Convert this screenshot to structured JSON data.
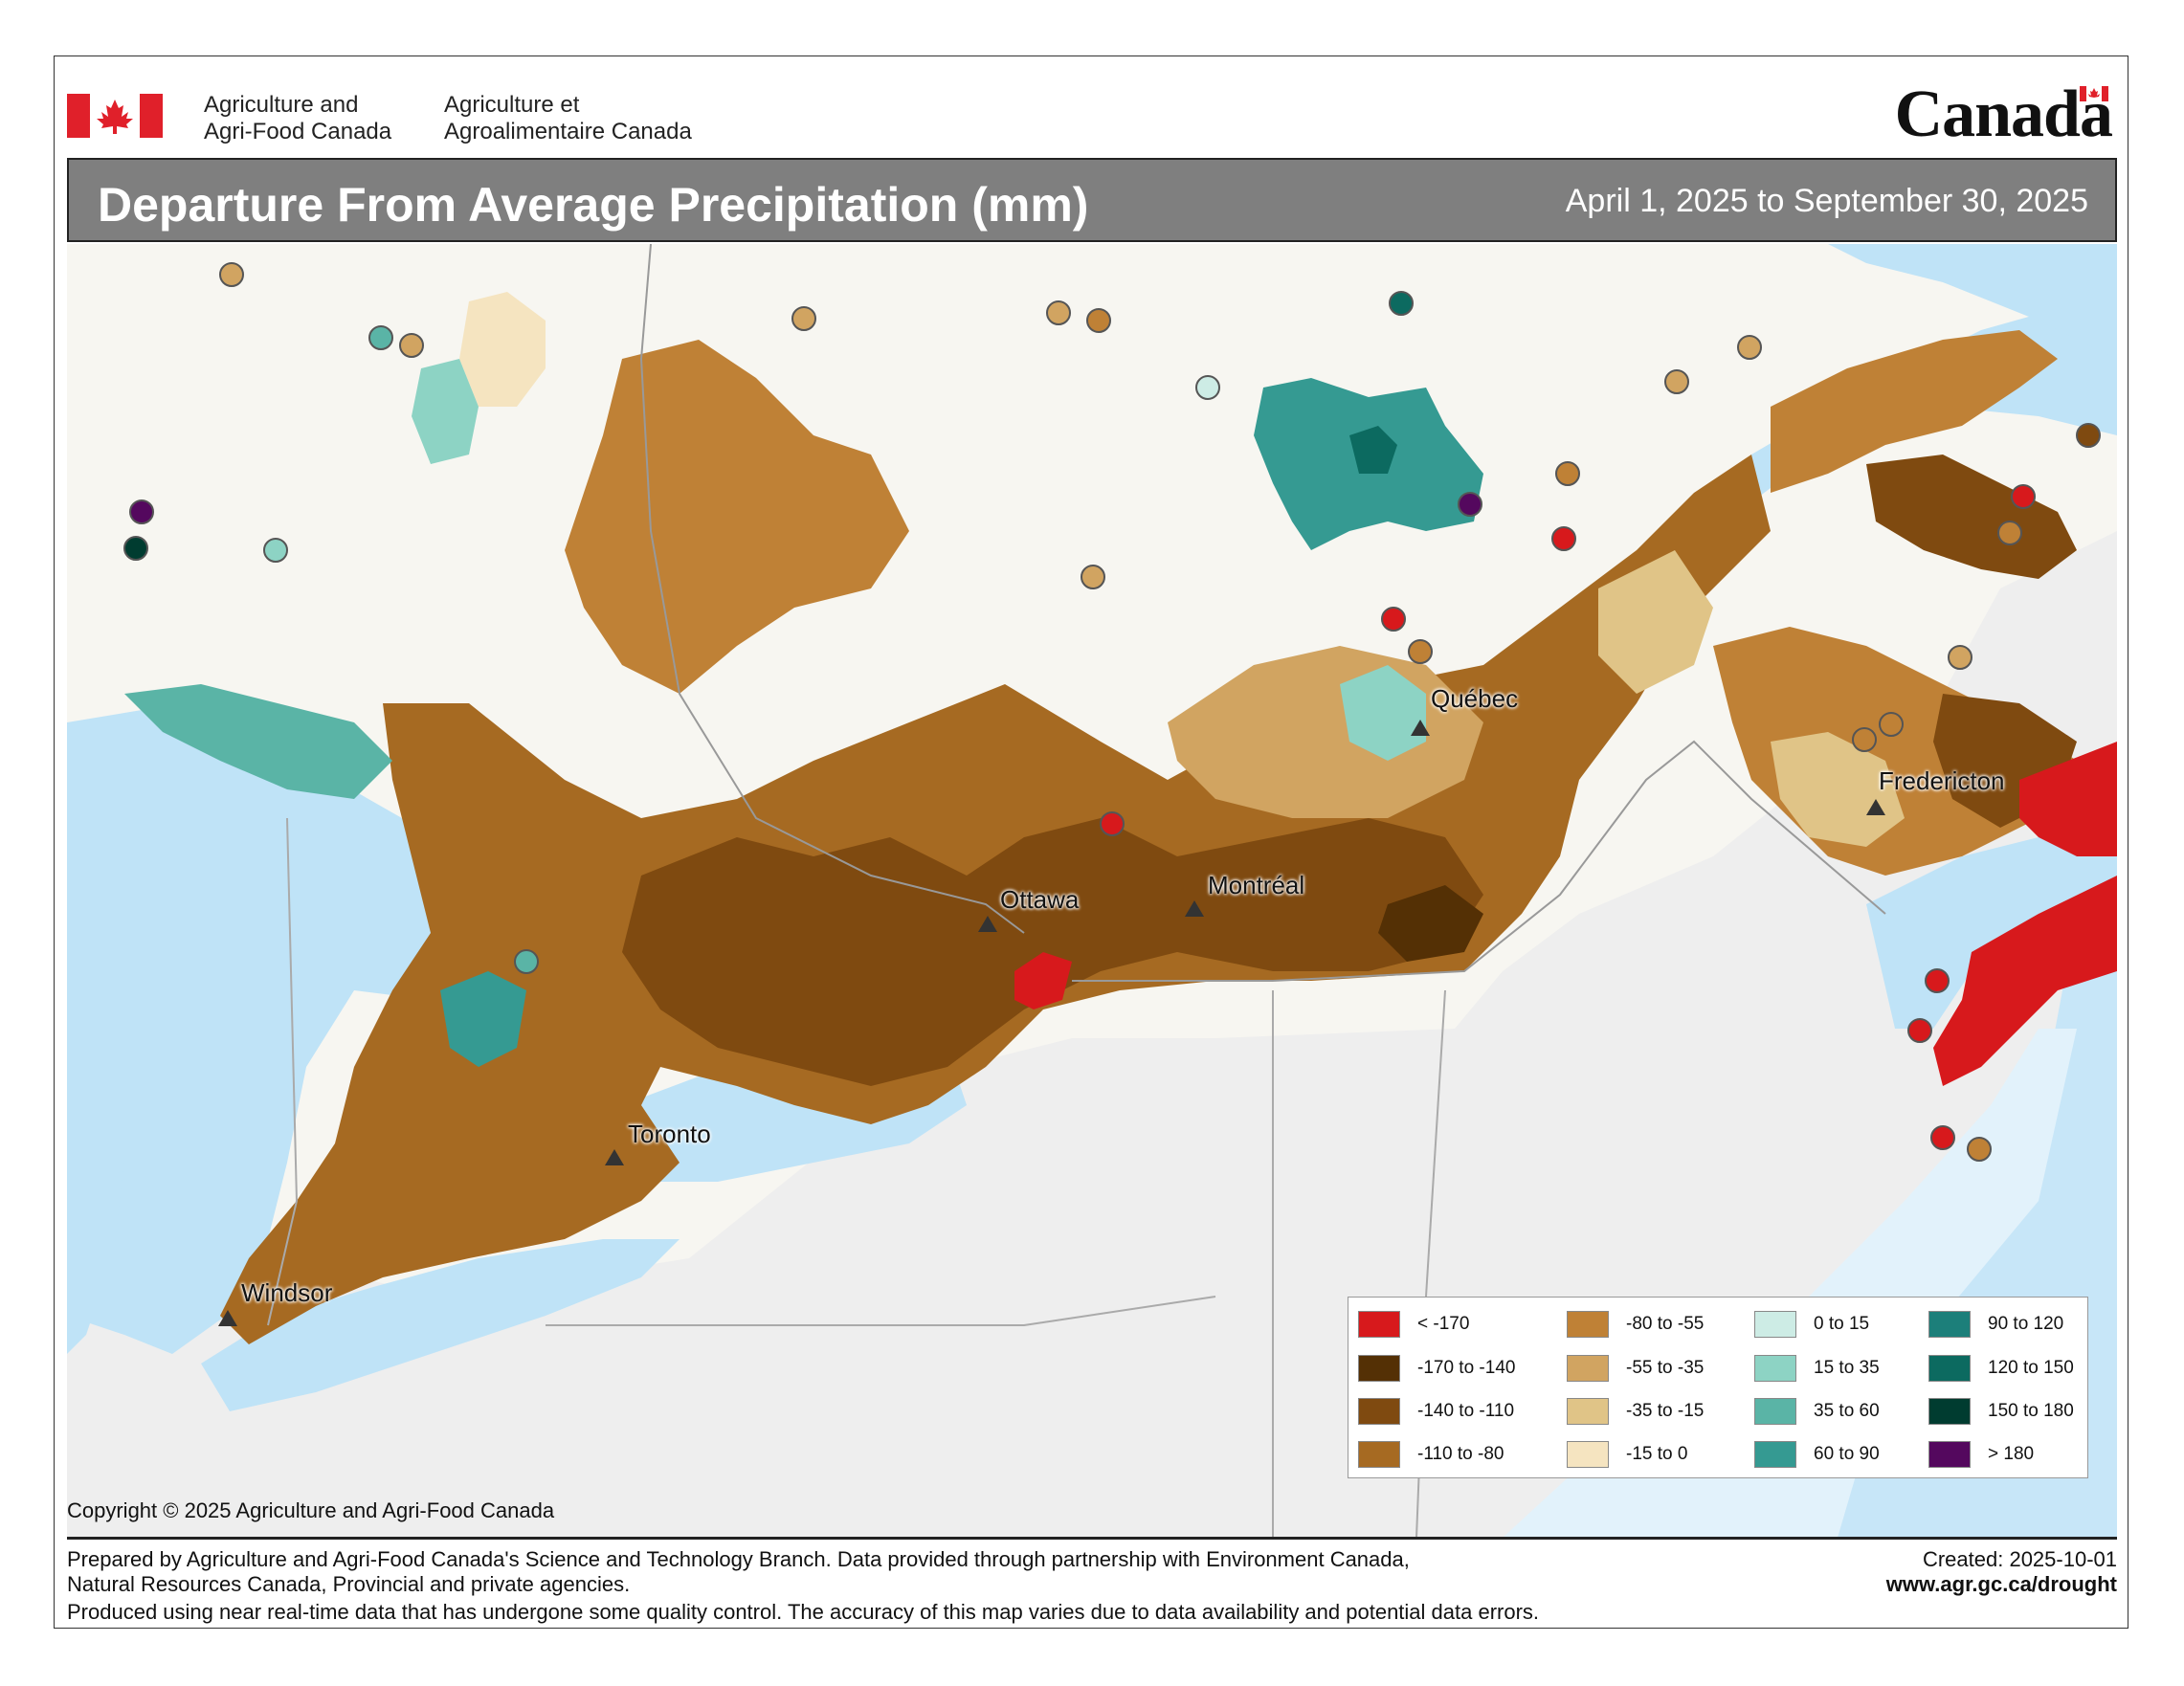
{
  "header": {
    "dept_en_line1": "Agriculture and",
    "dept_en_line2": "Agri-Food Canada",
    "dept_fr_line1": "Agriculture et",
    "dept_fr_line2": "Agroalimentaire Canada",
    "wordmark": "Canada"
  },
  "title": "Departure From Average Precipitation (mm)",
  "date_range": "April 1, 2025 to September 30, 2025",
  "cities": [
    {
      "name": "Québec"
    },
    {
      "name": "Fredericton"
    },
    {
      "name": "Ottawa"
    },
    {
      "name": "Montréal"
    },
    {
      "name": "Toronto"
    },
    {
      "name": "Windsor"
    }
  ],
  "legend": [
    {
      "label": "< -170",
      "color": "#d7191c"
    },
    {
      "label": "-170 to -140",
      "color": "#543005"
    },
    {
      "label": "-140 to -110",
      "color": "#7f4a10"
    },
    {
      "label": "-110 to -80",
      "color": "#a66a22"
    },
    {
      "label": "-80 to -55",
      "color": "#bf8136"
    },
    {
      "label": "-55 to -35",
      "color": "#d1a461"
    },
    {
      "label": "-35 to -15",
      "color": "#e0c487"
    },
    {
      "label": "-15 to 0",
      "color": "#f5e4c0"
    },
    {
      "label": "0 to 15",
      "color": "#cdece5"
    },
    {
      "label": "15 to 35",
      "color": "#8dd3c4"
    },
    {
      "label": "35 to 60",
      "color": "#5ab4a6"
    },
    {
      "label": "60 to 90",
      "color": "#359a92"
    },
    {
      "label": "90 to 120",
      "color": "#1c7f7a"
    },
    {
      "label": "120 to 150",
      "color": "#0c6a60"
    },
    {
      "label": "150 to 180",
      "color": "#003c30"
    },
    {
      "label": "> 180",
      "color": "#54085e"
    }
  ],
  "copyright": "Copyright © 2025 Agriculture and Agri-Food Canada",
  "footer": {
    "line1": "Prepared by Agriculture and Agri-Food Canada's Science and Technology Branch. Data provided through partnership with Environment Canada,",
    "line2": "Natural Resources Canada, Provincial and private agencies.",
    "line3": "Produced using near real-time data that has undergone some quality control. The accuracy of this map varies due to data availability and potential data errors.",
    "created": "Created: 2025-10-01",
    "url": "www.agr.gc.ca/drought"
  },
  "colors": {
    "water": "#bfe3f7",
    "land_outside": "#eeeeee",
    "land_inside": "#f7f6f1",
    "title_bar": "#7f7f7f",
    "flag_red": "#e0202a"
  }
}
